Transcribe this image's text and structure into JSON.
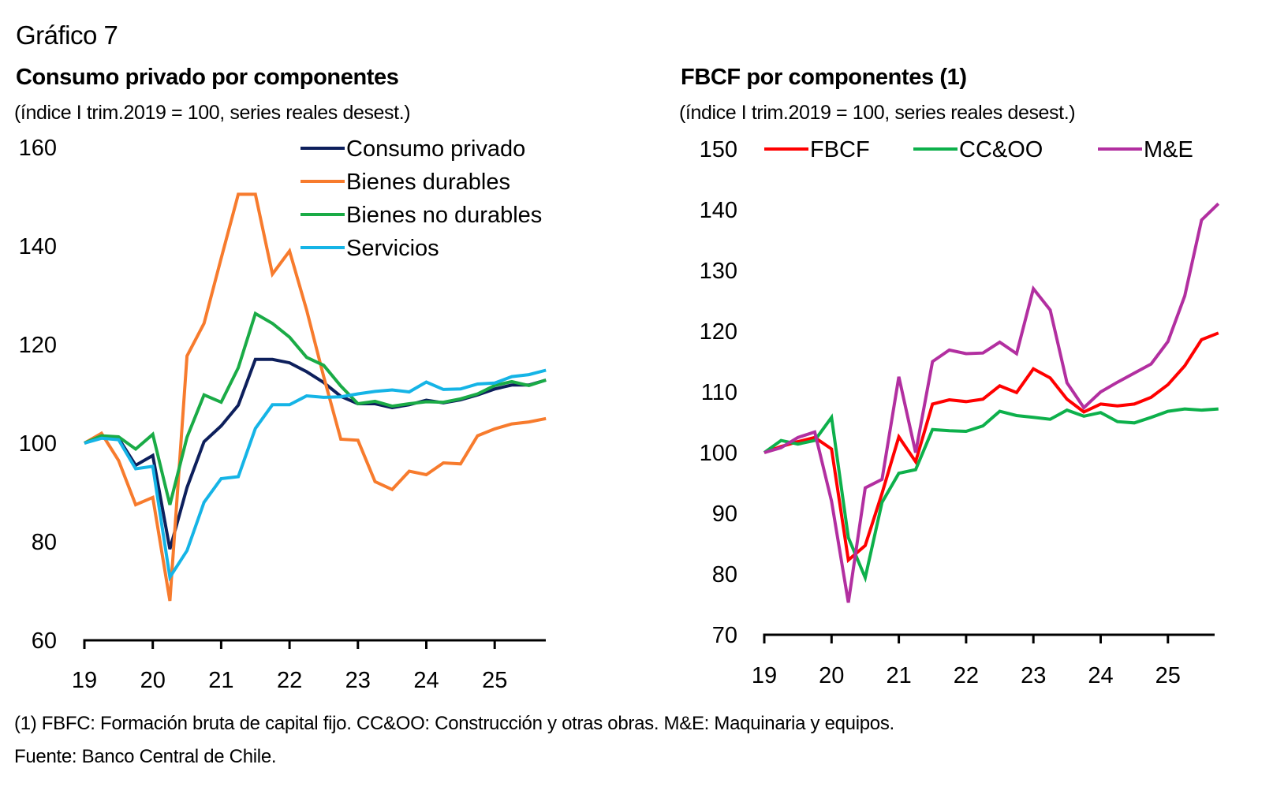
{
  "figure": {
    "label": "Gráfico 7",
    "footnote": "(1) FBFC: Formación bruta de capital fijo. CC&OO: Construcción y otras obras. M&E: Maquinaria y equipos.",
    "source": "Fuente: Banco Central de Chile."
  },
  "chart_data": [
    {
      "type": "line",
      "title": "Consumo privado por componentes",
      "subtitle": "(índice I trim.2019 = 100, series reales desest.)",
      "xlabel": "",
      "ylabel": "",
      "frequency": "quarterly",
      "x": [
        "2019Q1",
        "2019Q2",
        "2019Q3",
        "2019Q4",
        "2020Q1",
        "2020Q2",
        "2020Q3",
        "2020Q4",
        "2021Q1",
        "2021Q2",
        "2021Q3",
        "2021Q4",
        "2022Q1",
        "2022Q2",
        "2022Q3",
        "2022Q4",
        "2023Q1",
        "2023Q2",
        "2023Q3",
        "2023Q4",
        "2024Q1",
        "2024Q2",
        "2024Q3",
        "2024Q4",
        "2025Q1",
        "2025Q2",
        "2025Q3",
        "2025Q4"
      ],
      "xticks": [
        "19",
        "20",
        "21",
        "22",
        "23",
        "24",
        "25"
      ],
      "yticks": [
        "60",
        "80",
        "100",
        "120",
        "140",
        "160"
      ],
      "ylim": [
        60,
        160
      ],
      "grid": false,
      "legend_position": "top-right",
      "series": [
        {
          "name": "Consumo privado",
          "color": "#0d1f5c",
          "values": [
            100,
            101.5,
            101,
            95.5,
            97.5,
            78.5,
            91,
            100.3,
            103.5,
            107.7,
            117,
            117,
            116.3,
            114.5,
            112.3,
            109.5,
            108,
            108,
            107.2,
            107.8,
            108.7,
            108.2,
            108.8,
            109.8,
            111,
            111.8,
            111.8,
            112.8
          ]
        },
        {
          "name": "Bienes durables",
          "color": "#f77b2d",
          "values": [
            100,
            102,
            96.5,
            87.5,
            89,
            68,
            117.7,
            124.3,
            137.5,
            150.5,
            150.5,
            134.3,
            139,
            127,
            113.5,
            100.8,
            100.6,
            92.2,
            90.6,
            94.3,
            93.6,
            96,
            95.8,
            101.5,
            102.9,
            103.9,
            104.3,
            105
          ]
        },
        {
          "name": "Bienes no durables",
          "color": "#1aab46",
          "values": [
            100,
            101.5,
            101.3,
            98.8,
            101.8,
            87.5,
            101.2,
            109.8,
            108.3,
            115.3,
            126.3,
            124.3,
            121.5,
            117.4,
            115.8,
            111.6,
            108,
            108.5,
            107.5,
            108,
            108.4,
            108.3,
            109,
            110,
            111.7,
            112.5,
            111.7,
            112.8
          ]
        },
        {
          "name": "Servicios",
          "color": "#15b4e6",
          "values": [
            100,
            101,
            100.7,
            94.8,
            95.3,
            72.8,
            78.2,
            88,
            92.8,
            93.2,
            103,
            107.8,
            107.8,
            109.6,
            109.3,
            109.4,
            110,
            110.5,
            110.8,
            110.4,
            112.4,
            110.9,
            111,
            112,
            112.2,
            113.5,
            113.9,
            114.8
          ]
        }
      ]
    },
    {
      "type": "line",
      "title": "FBCF por componentes (1)",
      "subtitle": "(índice I trim.2019 = 100, series reales desest.)",
      "xlabel": "",
      "ylabel": "",
      "frequency": "quarterly",
      "x": [
        "2019Q1",
        "2019Q2",
        "2019Q3",
        "2019Q4",
        "2020Q1",
        "2020Q2",
        "2020Q3",
        "2020Q4",
        "2021Q1",
        "2021Q2",
        "2021Q3",
        "2021Q4",
        "2022Q1",
        "2022Q2",
        "2022Q3",
        "2022Q4",
        "2023Q1",
        "2023Q2",
        "2023Q3",
        "2023Q4",
        "2024Q1",
        "2024Q2",
        "2024Q3",
        "2024Q4",
        "2025Q1",
        "2025Q2",
        "2025Q3",
        "2025Q4"
      ],
      "xticks": [
        "19",
        "20",
        "21",
        "22",
        "23",
        "24",
        "25"
      ],
      "yticks": [
        "70",
        "80",
        "90",
        "100",
        "110",
        "120",
        "130",
        "140",
        "150"
      ],
      "ylim": [
        70,
        150
      ],
      "grid": false,
      "legend_position": "top",
      "series": [
        {
          "name": "FBCF",
          "color": "#ff0000",
          "values": [
            100,
            101,
            101.8,
            102.5,
            100.6,
            82.3,
            84.7,
            93.3,
            102.6,
            98.5,
            108,
            108.7,
            108.4,
            108.8,
            111,
            109.9,
            113.8,
            112.3,
            108.8,
            106.7,
            108,
            107.7,
            108,
            109.1,
            111.2,
            114.3,
            118.6,
            119.7
          ]
        },
        {
          "name": "CC&OO",
          "color": "#0db04b",
          "values": [
            100,
            102,
            101.4,
            102,
            105.8,
            86,
            79.4,
            91.8,
            96.6,
            97.2,
            103.8,
            103.6,
            103.5,
            104.4,
            106.8,
            106.1,
            105.8,
            105.5,
            107,
            106,
            106.6,
            105.1,
            104.9,
            105.8,
            106.8,
            107.2,
            107,
            107.2
          ]
        },
        {
          "name": "M&E",
          "color": "#b22fa0",
          "values": [
            100,
            100.8,
            102.5,
            103.4,
            92,
            75.3,
            94.2,
            95.6,
            112.5,
            100,
            115,
            116.9,
            116.3,
            116.4,
            118.2,
            116.3,
            127,
            123.5,
            111.5,
            107.4,
            110,
            111.6,
            113.1,
            114.6,
            118.3,
            125.8,
            138.3,
            141
          ]
        }
      ]
    }
  ]
}
